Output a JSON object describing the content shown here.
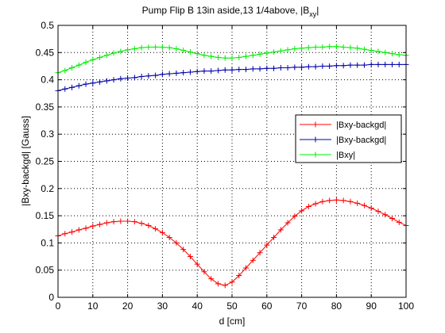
{
  "chart_data": {
    "type": "line",
    "title_main": "Pump Flip B 13in aside,13 1/4above, |B",
    "title_sub": "xy",
    "title_end": "|",
    "xlabel": "d [cm]",
    "ylabel": "|Bxy-backgd| [Gauss]",
    "xlim": [
      0,
      100
    ],
    "ylim": [
      0,
      0.5
    ],
    "xticks": [
      0,
      10,
      20,
      30,
      40,
      50,
      60,
      70,
      80,
      90,
      100
    ],
    "yticks": [
      0,
      0.05,
      0.1,
      0.15,
      0.2,
      0.25,
      0.3,
      0.35,
      0.4,
      0.45,
      0.5
    ],
    "xtick_labels": [
      "0",
      "10",
      "20",
      "30",
      "40",
      "50",
      "60",
      "70",
      "80",
      "90",
      "100"
    ],
    "ytick_labels": [
      "0",
      "0.05",
      "0.1",
      "0.15",
      "0.2",
      "0.25",
      "0.3",
      "0.35",
      "0.4",
      "0.45",
      "0.5"
    ],
    "grid": true,
    "legend_position": "right",
    "x": [
      0,
      2,
      4,
      6,
      8,
      10,
      12,
      14,
      16,
      18,
      20,
      22,
      24,
      26,
      28,
      30,
      32,
      34,
      36,
      38,
      40,
      42,
      44,
      46,
      48,
      50,
      52,
      54,
      56,
      58,
      60,
      62,
      64,
      66,
      68,
      70,
      72,
      74,
      76,
      78,
      80,
      82,
      84,
      86,
      88,
      90,
      92,
      94,
      96,
      98,
      100
    ],
    "series": [
      {
        "name": "|Bxy-backgd|",
        "color": "#ff0000",
        "values": [
          0.113,
          0.117,
          0.12,
          0.124,
          0.127,
          0.131,
          0.134,
          0.137,
          0.139,
          0.14,
          0.14,
          0.139,
          0.136,
          0.132,
          0.126,
          0.119,
          0.11,
          0.1,
          0.088,
          0.075,
          0.061,
          0.047,
          0.034,
          0.025,
          0.022,
          0.028,
          0.04,
          0.054,
          0.068,
          0.082,
          0.096,
          0.11,
          0.124,
          0.137,
          0.149,
          0.159,
          0.167,
          0.172,
          0.176,
          0.178,
          0.179,
          0.178,
          0.176,
          0.173,
          0.169,
          0.164,
          0.158,
          0.152,
          0.145,
          0.138,
          0.132
        ]
      },
      {
        "name": "|Bxy-backgd|",
        "color": "#0000aa",
        "values": [
          0.38,
          0.383,
          0.386,
          0.389,
          0.392,
          0.394,
          0.396,
          0.398,
          0.4,
          0.402,
          0.403,
          0.404,
          0.406,
          0.407,
          0.408,
          0.41,
          0.411,
          0.412,
          0.413,
          0.414,
          0.415,
          0.416,
          0.416,
          0.417,
          0.418,
          0.418,
          0.419,
          0.419,
          0.42,
          0.42,
          0.421,
          0.421,
          0.422,
          0.422,
          0.423,
          0.423,
          0.424,
          0.424,
          0.425,
          0.425,
          0.426,
          0.426,
          0.427,
          0.427,
          0.427,
          0.428,
          0.428,
          0.428,
          0.428,
          0.428,
          0.428
        ]
      },
      {
        "name": "|Bxy|",
        "color": "#00ee00",
        "values": [
          0.413,
          0.417,
          0.422,
          0.427,
          0.432,
          0.437,
          0.441,
          0.445,
          0.449,
          0.452,
          0.455,
          0.457,
          0.459,
          0.46,
          0.46,
          0.46,
          0.459,
          0.457,
          0.454,
          0.451,
          0.448,
          0.445,
          0.443,
          0.441,
          0.44,
          0.44,
          0.441,
          0.443,
          0.445,
          0.447,
          0.449,
          0.451,
          0.453,
          0.455,
          0.457,
          0.458,
          0.459,
          0.46,
          0.46,
          0.461,
          0.461,
          0.46,
          0.459,
          0.458,
          0.456,
          0.454,
          0.452,
          0.45,
          0.448,
          0.446,
          0.445
        ]
      }
    ]
  }
}
